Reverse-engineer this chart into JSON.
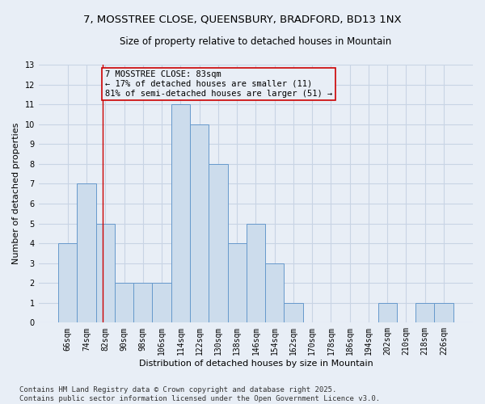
{
  "title": "7, MOSSTREE CLOSE, QUEENSBURY, BRADFORD, BD13 1NX",
  "subtitle": "Size of property relative to detached houses in Mountain",
  "xlabel": "Distribution of detached houses by size in Mountain",
  "ylabel": "Number of detached properties",
  "categories": [
    "66sqm",
    "74sqm",
    "82sqm",
    "90sqm",
    "98sqm",
    "106sqm",
    "114sqm",
    "122sqm",
    "130sqm",
    "138sqm",
    "146sqm",
    "154sqm",
    "162sqm",
    "170sqm",
    "178sqm",
    "186sqm",
    "194sqm",
    "202sqm",
    "210sqm",
    "218sqm",
    "226sqm"
  ],
  "values": [
    4,
    7,
    5,
    2,
    2,
    2,
    11,
    10,
    8,
    4,
    5,
    3,
    1,
    0,
    0,
    0,
    0,
    1,
    0,
    1,
    1
  ],
  "bar_color": "#ccdcec",
  "bar_edge_color": "#6699cc",
  "grid_color": "#c8d4e4",
  "background_color": "#e8eef6",
  "annotation_box_text": "7 MOSSTREE CLOSE: 83sqm\n← 17% of detached houses are smaller (11)\n81% of semi-detached houses are larger (51) →",
  "annotation_box_color": "#cc0000",
  "ylim": [
    0,
    13
  ],
  "yticks": [
    0,
    1,
    2,
    3,
    4,
    5,
    6,
    7,
    8,
    9,
    10,
    11,
    12,
    13
  ],
  "vline_x": 1.87,
  "footer": "Contains HM Land Registry data © Crown copyright and database right 2025.\nContains public sector information licensed under the Open Government Licence v3.0.",
  "title_fontsize": 9.5,
  "subtitle_fontsize": 8.5,
  "ylabel_fontsize": 8,
  "xlabel_fontsize": 8,
  "tick_fontsize": 7,
  "annotation_fontsize": 7.5,
  "footer_fontsize": 6.5
}
